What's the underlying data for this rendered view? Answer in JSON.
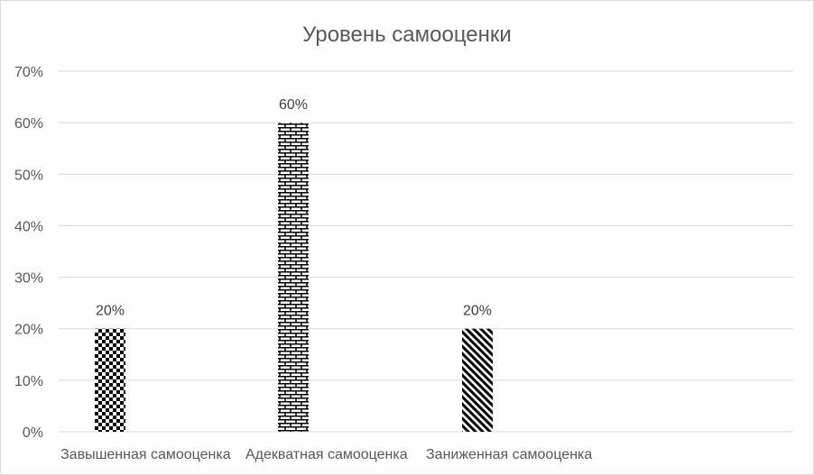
{
  "chart_data": {
    "type": "bar",
    "title": "Уровень самооценки",
    "categories": [
      "Завышенная самооценка",
      "Адекватная самооценка",
      "Заниженная самооценка"
    ],
    "values": [
      20,
      60,
      20
    ],
    "data_labels": [
      "20%",
      "60%",
      "20%"
    ],
    "patterns": [
      "checkerboard",
      "brick",
      "diagonal-stripes"
    ],
    "ylim": [
      0,
      70
    ],
    "yticks": [
      "0%",
      "10%",
      "20%",
      "30%",
      "40%",
      "50%",
      "60%",
      "70%"
    ],
    "grid": true,
    "legend": "none",
    "colors": {
      "bar": "#000000",
      "grid": "#d9d9d9",
      "text": "#595959"
    }
  }
}
